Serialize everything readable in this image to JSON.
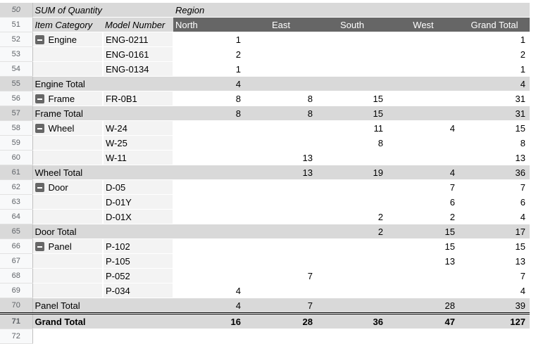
{
  "pivot": {
    "value_label": "SUM of Quantity",
    "column_field": "Region",
    "row_fields": [
      "Item Category",
      "Model Number"
    ],
    "columns": [
      "North",
      "East",
      "South",
      "West",
      "Grand Total"
    ],
    "rows": [
      {
        "n": "52",
        "type": "item",
        "cat": "Engine",
        "model": "ENG-0211",
        "v": [
          "1",
          "",
          "",
          "",
          "1"
        ]
      },
      {
        "n": "53",
        "type": "item",
        "cat": "",
        "model": "ENG-0161",
        "v": [
          "2",
          "",
          "",
          "",
          "2"
        ]
      },
      {
        "n": "54",
        "type": "item",
        "cat": "",
        "model": "ENG-0134",
        "v": [
          "1",
          "",
          "",
          "",
          "1"
        ]
      },
      {
        "n": "55",
        "type": "total",
        "cat": "Engine Total",
        "v": [
          "4",
          "",
          "",
          "",
          "4"
        ]
      },
      {
        "n": "56",
        "type": "item",
        "cat": "Frame",
        "model": "FR-0B1",
        "v": [
          "8",
          "8",
          "15",
          "",
          "31"
        ]
      },
      {
        "n": "57",
        "type": "total",
        "cat": "Frame Total",
        "v": [
          "8",
          "8",
          "15",
          "",
          "31"
        ]
      },
      {
        "n": "58",
        "type": "item",
        "cat": "Wheel",
        "model": "W-24",
        "v": [
          "",
          "",
          "11",
          "4",
          "15"
        ]
      },
      {
        "n": "59",
        "type": "item",
        "cat": "",
        "model": "W-25",
        "v": [
          "",
          "",
          "8",
          "",
          "8"
        ]
      },
      {
        "n": "60",
        "type": "item",
        "cat": "",
        "model": "W-11",
        "v": [
          "",
          "13",
          "",
          "",
          "13"
        ]
      },
      {
        "n": "61",
        "type": "total",
        "cat": "Wheel Total",
        "v": [
          "",
          "13",
          "19",
          "4",
          "36"
        ]
      },
      {
        "n": "62",
        "type": "item",
        "cat": "Door",
        "model": "D-05",
        "v": [
          "",
          "",
          "",
          "7",
          "7"
        ]
      },
      {
        "n": "63",
        "type": "item",
        "cat": "",
        "model": "D-01Y",
        "v": [
          "",
          "",
          "",
          "6",
          "6"
        ]
      },
      {
        "n": "64",
        "type": "item",
        "cat": "",
        "model": "D-01X",
        "v": [
          "",
          "",
          "2",
          "2",
          "4"
        ]
      },
      {
        "n": "65",
        "type": "total",
        "cat": "Door Total",
        "v": [
          "",
          "",
          "2",
          "15",
          "17"
        ]
      },
      {
        "n": "66",
        "type": "item",
        "cat": "Panel",
        "model": "P-102",
        "v": [
          "",
          "",
          "",
          "15",
          "15"
        ]
      },
      {
        "n": "67",
        "type": "item",
        "cat": "",
        "model": "P-105",
        "v": [
          "",
          "",
          "",
          "13",
          "13"
        ]
      },
      {
        "n": "68",
        "type": "item",
        "cat": "",
        "model": "P-052",
        "v": [
          "",
          "7",
          "",
          "",
          "7"
        ]
      },
      {
        "n": "69",
        "type": "item",
        "cat": "",
        "model": "P-034",
        "v": [
          "4",
          "",
          "",
          "",
          "4"
        ]
      },
      {
        "n": "70",
        "type": "total",
        "cat": "Panel Total",
        "v": [
          "4",
          "7",
          "",
          "28",
          "39"
        ]
      },
      {
        "n": "71",
        "type": "grand",
        "cat": "Grand Total",
        "v": [
          "16",
          "28",
          "36",
          "47",
          "127"
        ]
      }
    ],
    "row_numbers": [
      "50",
      "51",
      "72"
    ]
  }
}
